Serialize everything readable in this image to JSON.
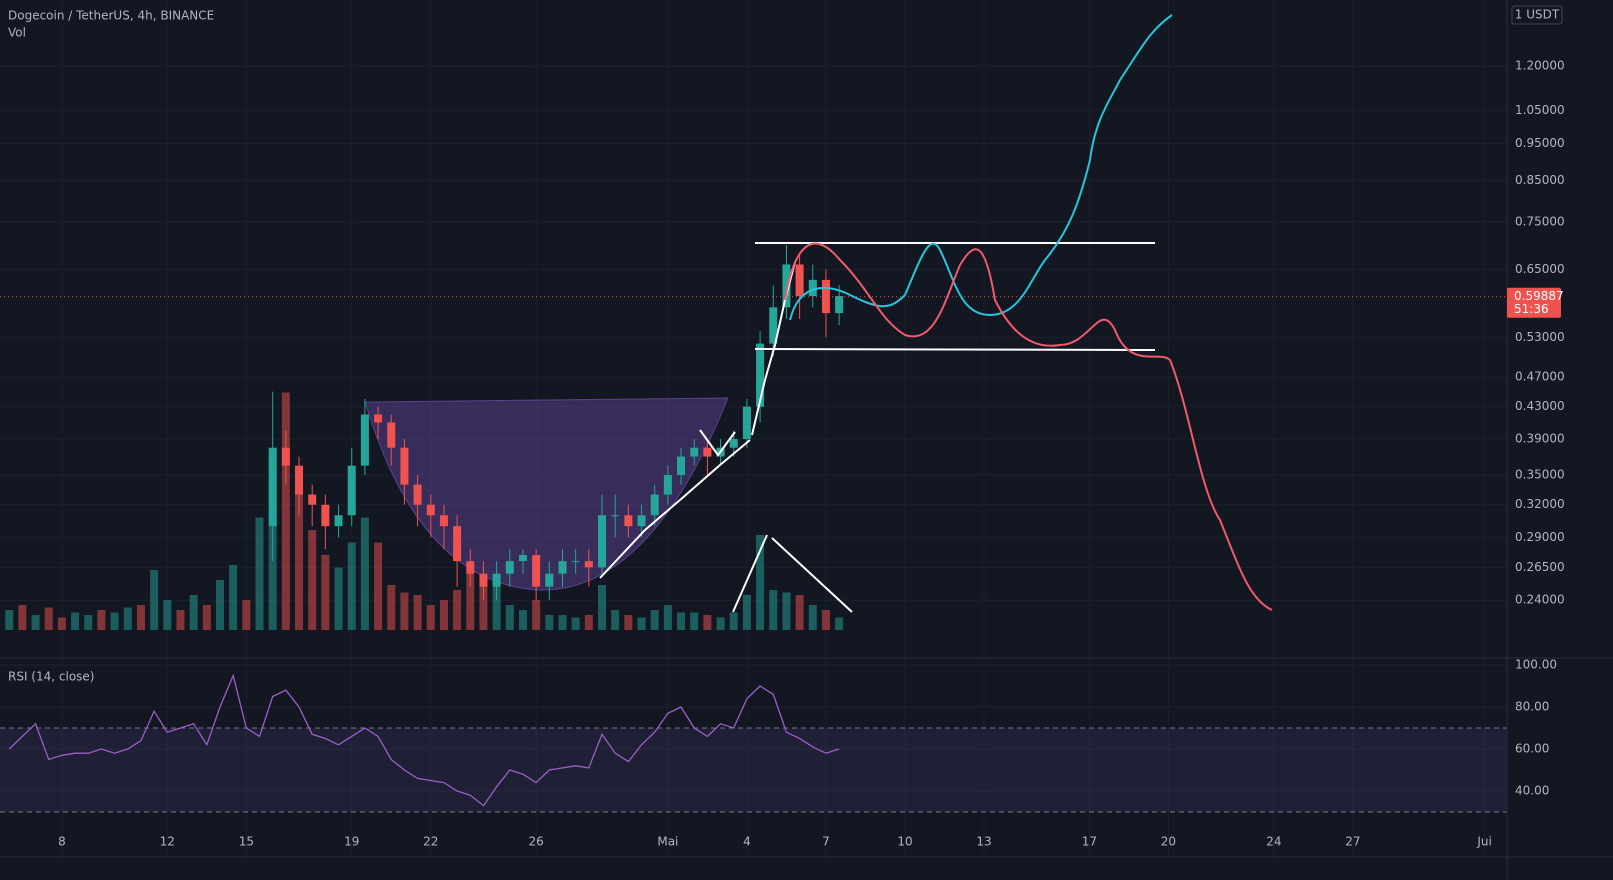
{
  "chart_data": [
    {
      "type": "candlestick",
      "title": "Dogecoin / TetherUS, 4h, BINANCE",
      "currency_label": "1 USDT",
      "log_scale": true,
      "up_color": "#26a69a",
      "down_color": "#ef5350",
      "xlim": [
        5.65,
        62.85
      ],
      "xticks": [
        8,
        12,
        15,
        19,
        22,
        26,
        {
          "value": 31,
          "label": "Mai"
        },
        {
          "value": 34,
          "label": "4"
        },
        {
          "value": 37,
          "label": "7"
        },
        {
          "value": 40,
          "label": "10"
        },
        {
          "value": 43,
          "label": "13"
        },
        {
          "value": 47,
          "label": "17"
        },
        {
          "value": 50,
          "label": "20"
        },
        {
          "value": 54,
          "label": "24"
        },
        {
          "value": 57,
          "label": "27"
        },
        {
          "value": 62,
          "label": "Jui"
        }
      ],
      "ylim": [
        0.2035,
        1.464
      ],
      "yticks": [
        {
          "value": 1.2,
          "label": "1.20000"
        },
        {
          "value": 1.05,
          "label": "1.05000"
        },
        {
          "value": 0.95,
          "label": "0.95000"
        },
        {
          "value": 0.85,
          "label": "0.85000"
        },
        {
          "value": 0.75,
          "label": "0.75000"
        },
        {
          "value": 0.65,
          "label": "0.65000"
        },
        {
          "value": 0.53,
          "label": "0.53000"
        },
        {
          "value": 0.47,
          "label": "0.47000"
        },
        {
          "value": 0.43,
          "label": "0.43000"
        },
        {
          "value": 0.39,
          "label": "0.39000"
        },
        {
          "value": 0.35,
          "label": "0.35000"
        },
        {
          "value": 0.32,
          "label": "0.32000"
        },
        {
          "value": 0.29,
          "label": "0.29000"
        },
        {
          "value": 0.265,
          "label": "0.26500"
        },
        {
          "value": 0.24,
          "label": "0.24000"
        }
      ],
      "last_price": 0.59887,
      "countdown": "51:36",
      "x": [
        16,
        16.5,
        17,
        17.5,
        18,
        18.5,
        19,
        19.5,
        20,
        20.5,
        21,
        21.5,
        22,
        22.5,
        23,
        23.5,
        24,
        24.5,
        25,
        25.5,
        26,
        26.5,
        27,
        27.5,
        28,
        28.5,
        29,
        29.5,
        30,
        30.5,
        31,
        31.5,
        32,
        32.5,
        33,
        33.5,
        34,
        34.5,
        35,
        35.5,
        36,
        36.5,
        37,
        37.5
      ],
      "open": [
        0.3,
        0.38,
        0.36,
        0.33,
        0.32,
        0.3,
        0.31,
        0.36,
        0.42,
        0.41,
        0.38,
        0.34,
        0.32,
        0.31,
        0.3,
        0.27,
        0.26,
        0.25,
        0.26,
        0.27,
        0.275,
        0.25,
        0.26,
        0.27,
        0.27,
        0.265,
        0.31,
        0.31,
        0.3,
        0.31,
        0.33,
        0.35,
        0.37,
        0.38,
        0.37,
        0.38,
        0.39,
        0.43,
        0.52,
        0.58,
        0.66,
        0.6,
        0.63,
        0.57
      ],
      "high": [
        0.45,
        0.4,
        0.37,
        0.34,
        0.33,
        0.32,
        0.38,
        0.44,
        0.43,
        0.42,
        0.39,
        0.35,
        0.33,
        0.32,
        0.31,
        0.28,
        0.27,
        0.27,
        0.28,
        0.28,
        0.28,
        0.27,
        0.28,
        0.28,
        0.28,
        0.33,
        0.33,
        0.32,
        0.32,
        0.34,
        0.36,
        0.38,
        0.39,
        0.39,
        0.39,
        0.4,
        0.44,
        0.54,
        0.62,
        0.7,
        0.68,
        0.66,
        0.65,
        0.62
      ],
      "low": [
        0.27,
        0.34,
        0.31,
        0.3,
        0.28,
        0.29,
        0.3,
        0.35,
        0.39,
        0.36,
        0.32,
        0.3,
        0.29,
        0.28,
        0.25,
        0.25,
        0.24,
        0.24,
        0.25,
        0.26,
        0.24,
        0.24,
        0.25,
        0.26,
        0.25,
        0.26,
        0.29,
        0.29,
        0.29,
        0.3,
        0.32,
        0.34,
        0.36,
        0.35,
        0.36,
        0.37,
        0.38,
        0.41,
        0.5,
        0.56,
        0.56,
        0.58,
        0.53,
        0.55
      ],
      "close": [
        0.38,
        0.36,
        0.33,
        0.32,
        0.3,
        0.31,
        0.36,
        0.42,
        0.41,
        0.38,
        0.34,
        0.32,
        0.31,
        0.3,
        0.27,
        0.26,
        0.25,
        0.26,
        0.27,
        0.275,
        0.25,
        0.26,
        0.27,
        0.27,
        0.265,
        0.31,
        0.31,
        0.3,
        0.31,
        0.33,
        0.35,
        0.37,
        0.38,
        0.37,
        0.38,
        0.39,
        0.43,
        0.52,
        0.58,
        0.66,
        0.6,
        0.63,
        0.57,
        0.6
      ]
    },
    {
      "type": "bar",
      "title": "Vol",
      "ylim": [
        0,
        100
      ],
      "up_color": "#26a69a80",
      "down_color": "#ef535080",
      "x": [
        6,
        6.5,
        7,
        7.5,
        8,
        8.5,
        9,
        9.5,
        10,
        10.5,
        11,
        11.5,
        12,
        12.5,
        13,
        13.5,
        14,
        14.5,
        15,
        15.5,
        16,
        16.5,
        17,
        17.5,
        18,
        18.5,
        19,
        19.5,
        20,
        20.5,
        21,
        21.5,
        22,
        22.5,
        23,
        23.5,
        24,
        24.5,
        25,
        25.5,
        26,
        26.5,
        27,
        27.5,
        28,
        28.5,
        29,
        29.5,
        30,
        30.5,
        31,
        31.5,
        32,
        32.5,
        33,
        33.5,
        34,
        34.5,
        35,
        35.5,
        36,
        36.5,
        37,
        37.5
      ],
      "values": [
        8,
        10,
        6,
        9,
        5,
        7,
        6,
        8,
        7,
        9,
        10,
        24,
        12,
        8,
        14,
        10,
        20,
        26,
        12,
        45,
        70,
        95,
        60,
        40,
        30,
        25,
        35,
        45,
        35,
        18,
        15,
        14,
        10,
        12,
        16,
        25,
        18,
        20,
        10,
        8,
        12,
        6,
        6,
        5,
        6,
        18,
        8,
        6,
        5,
        8,
        10,
        7,
        7,
        6,
        5,
        7,
        14,
        38,
        16,
        15,
        14,
        10,
        8,
        5
      ],
      "directions": [
        "up",
        "down",
        "up",
        "down",
        "down",
        "up",
        "up",
        "down",
        "up",
        "up",
        "down",
        "up",
        "up",
        "down",
        "up",
        "down",
        "up",
        "up",
        "down",
        "up",
        "up",
        "down",
        "down",
        "down",
        "down",
        "up",
        "up",
        "up",
        "down",
        "down",
        "down",
        "down",
        "down",
        "down",
        "down",
        "down",
        "down",
        "up",
        "up",
        "up",
        "down",
        "up",
        "up",
        "up",
        "down",
        "up",
        "up",
        "down",
        "up",
        "up",
        "up",
        "up",
        "up",
        "down",
        "up",
        "up",
        "up",
        "up",
        "up",
        "up",
        "down",
        "up",
        "down",
        "up"
      ]
    },
    {
      "type": "line",
      "title": "RSI (14, close)",
      "color": "#9c5fc9",
      "ylim": [
        9.5,
        102.4
      ],
      "yticks": [
        {
          "value": 100,
          "label": "100.00"
        },
        {
          "value": 80,
          "label": "80.00"
        },
        {
          "value": 60,
          "label": "60.00"
        },
        {
          "value": 40,
          "label": "40.00"
        }
      ],
      "bands": [
        30,
        70
      ],
      "x": [
        6,
        6.5,
        7,
        7.5,
        8,
        8.5,
        9,
        9.5,
        10,
        10.5,
        11,
        11.5,
        12,
        12.5,
        13,
        13.5,
        14,
        14.5,
        15,
        15.5,
        16,
        16.5,
        17,
        17.5,
        18,
        18.5,
        19,
        19.5,
        20,
        20.5,
        21,
        21.5,
        22,
        22.5,
        23,
        23.5,
        24,
        24.5,
        25,
        25.5,
        26,
        26.5,
        27,
        27.5,
        28,
        28.5,
        29,
        29.5,
        30,
        30.5,
        31,
        31.5,
        32,
        32.5,
        33,
        33.5,
        34,
        34.5,
        35,
        35.5,
        36,
        36.5,
        37,
        37.5
      ],
      "values": [
        60,
        66,
        72,
        55,
        57,
        58,
        58,
        60,
        58,
        60,
        64,
        78,
        68,
        70,
        72,
        62,
        80,
        95,
        70,
        66,
        85,
        88,
        80,
        67,
        65,
        62,
        66,
        70,
        66,
        55,
        50,
        46,
        45,
        44,
        40,
        38,
        33,
        42,
        50,
        48,
        44,
        50,
        51,
        52,
        51,
        67,
        58,
        54,
        62,
        68,
        77,
        80,
        70,
        66,
        72,
        70,
        84,
        90,
        86,
        68,
        65,
        61,
        58,
        60
      ]
    }
  ]
}
